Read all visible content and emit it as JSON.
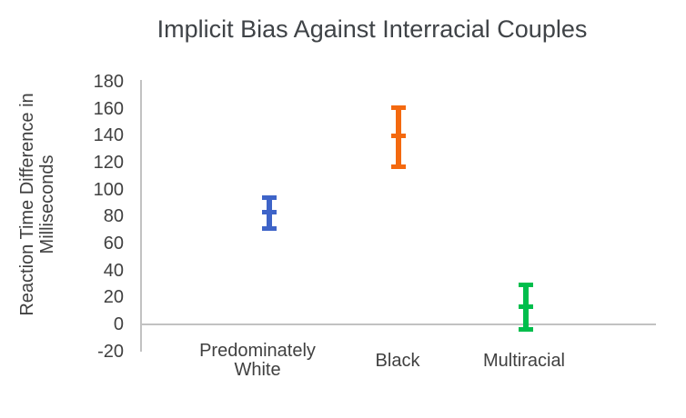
{
  "chart_data": {
    "type": "scatter",
    "title": "Implicit Bias Against Interracial Couples",
    "xlabel": "",
    "ylabel": "Reaction Time Difference in Milliseconds",
    "ylabel_lines": [
      "Reaction Time Difference in",
      "Milliseconds"
    ],
    "categories": [
      "Predominately White",
      "Black",
      "Multiracial"
    ],
    "series": [
      {
        "name": "Predominately White",
        "x": 1,
        "mean": 83,
        "ci_low": 71,
        "ci_high": 94,
        "color": "#3E64C8"
      },
      {
        "name": "Black",
        "x": 2,
        "mean": 140,
        "ci_low": 117,
        "ci_high": 161,
        "color": "#F4690F"
      },
      {
        "name": "Multiracial",
        "x": 3,
        "mean": 13,
        "ci_low": -4,
        "ci_high": 29,
        "color": "#00BE4C"
      }
    ],
    "yticks": [
      180,
      160,
      140,
      120,
      100,
      80,
      60,
      40,
      20,
      0,
      -20
    ],
    "ylim": [
      -20,
      180
    ],
    "xlim": [
      0,
      4
    ],
    "grid": false,
    "legend": "none",
    "marker_style": "error-bar-with-mean-dash",
    "colors": {
      "text": "#404040",
      "axis_line": "#C2C2C2",
      "background": "#FFFFFF"
    }
  }
}
